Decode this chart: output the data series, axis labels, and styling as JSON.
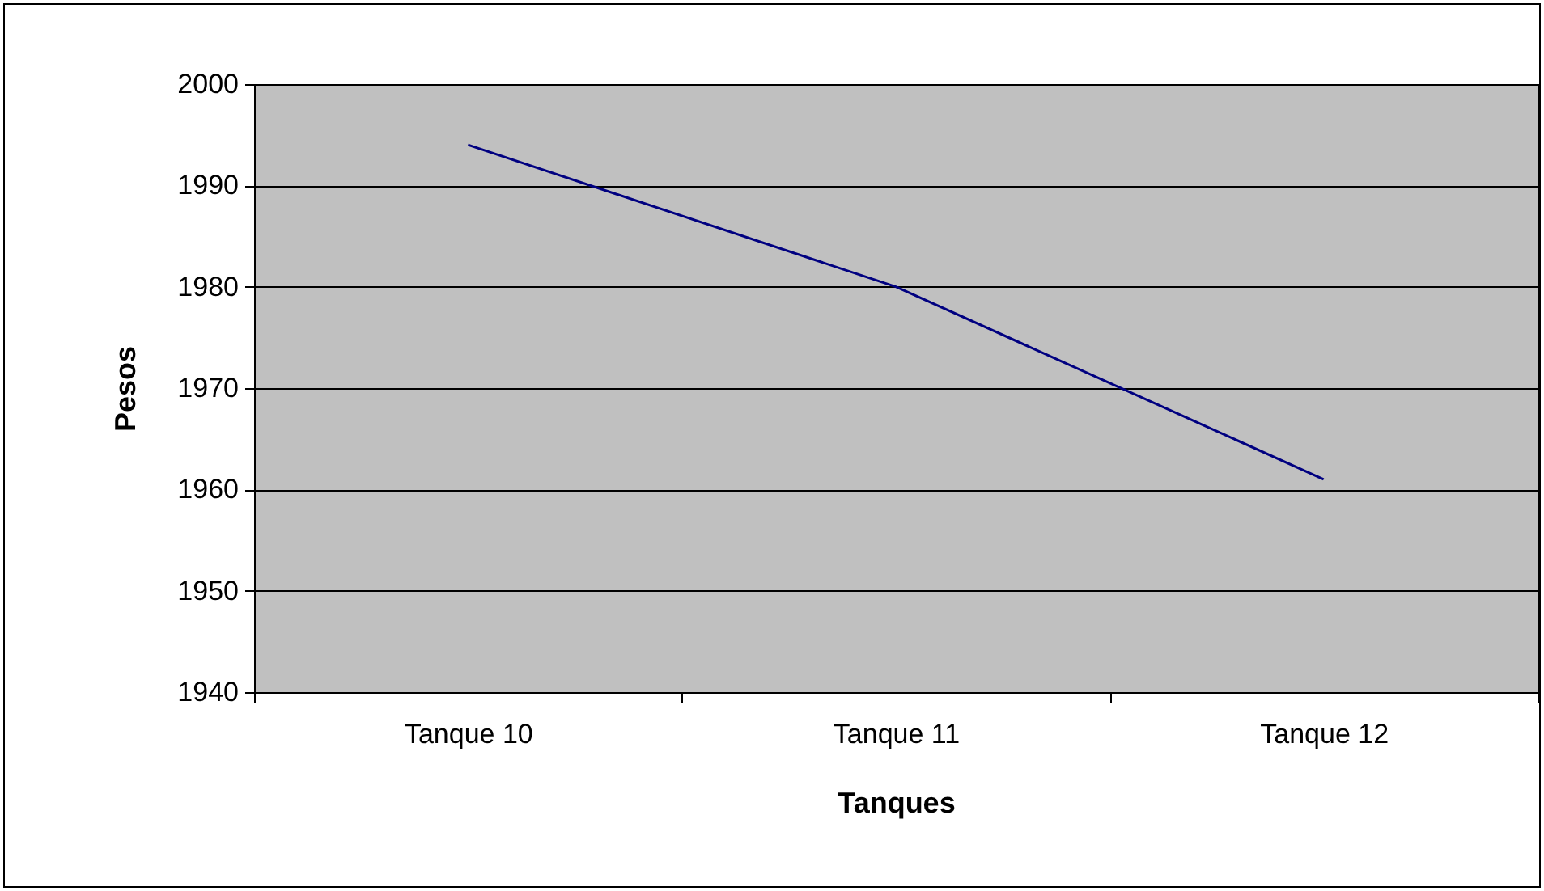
{
  "chart_data": {
    "type": "line",
    "xlabel": "Tanques",
    "ylabel": "Pesos",
    "categories": [
      "Tanque 10",
      "Tanque 11",
      "Tanque 12"
    ],
    "series": [
      {
        "color": "#000080",
        "values": [
          1994,
          1980,
          1961
        ]
      }
    ],
    "ylim": [
      1940,
      2000
    ],
    "yticks": [
      1940,
      1950,
      1960,
      1970,
      1980,
      1990,
      2000
    ],
    "grid": "y",
    "marker": "none",
    "line_style": "solid",
    "legend": false
  }
}
